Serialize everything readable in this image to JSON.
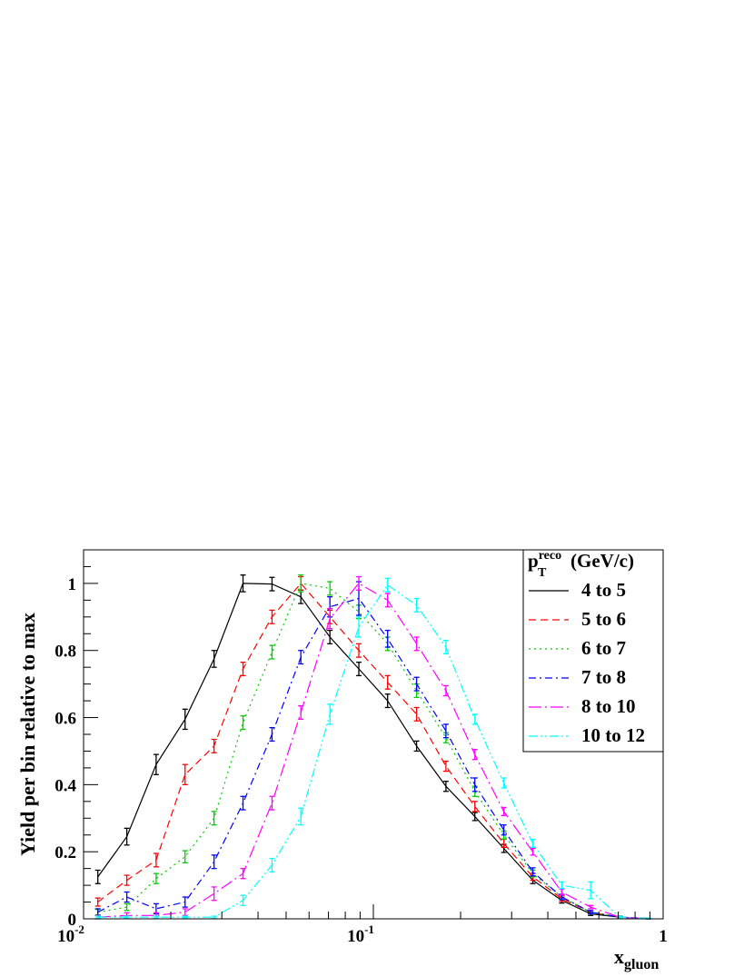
{
  "chart_data": {
    "type": "line",
    "title": "",
    "xlabel": "x",
    "xlabel_sub": "gluon",
    "ylabel": "Yield per bin relative to max",
    "xscale": "log",
    "xlim": [
      0.01,
      1
    ],
    "ylim": [
      0,
      1.1
    ],
    "grid": false,
    "legend": {
      "placement": "top-right",
      "title_main": "p",
      "title_sup": "reco",
      "title_sub": "T",
      "title_unit": "(GeV/c)"
    },
    "x_ticks": [
      {
        "value": 0.01,
        "base": "10",
        "exp": "-2"
      },
      {
        "value": 0.1,
        "base": "10",
        "exp": "-1"
      },
      {
        "value": 1,
        "base": "1",
        "exp": ""
      }
    ],
    "y_ticks": [
      {
        "value": 0,
        "label": "0"
      },
      {
        "value": 0.2,
        "label": "0.2"
      },
      {
        "value": 0.4,
        "label": "0.4"
      },
      {
        "value": 0.6,
        "label": "0.6"
      },
      {
        "value": 0.8,
        "label": "0.8"
      },
      {
        "value": 1,
        "label": "1"
      }
    ],
    "x": [
      0.0112,
      0.0141,
      0.0178,
      0.0224,
      0.0282,
      0.0355,
      0.0447,
      0.0562,
      0.0708,
      0.0891,
      0.112,
      0.141,
      0.178,
      0.224,
      0.282,
      0.355,
      0.447,
      0.562,
      0.708,
      0.891
    ],
    "series": [
      {
        "name": "4 to 5",
        "color": "#000000",
        "dash": "",
        "values": [
          0.125,
          0.245,
          0.46,
          0.595,
          0.775,
          1.0,
          0.998,
          0.96,
          0.84,
          0.745,
          0.65,
          0.515,
          0.395,
          0.305,
          0.21,
          0.115,
          0.055,
          0.015,
          0.005,
          0.001
        ],
        "errors": [
          0.02,
          0.025,
          0.03,
          0.03,
          0.025,
          0.025,
          0.02,
          0.02,
          0.02,
          0.02,
          0.02,
          0.015,
          0.015,
          0.012,
          0.012,
          0.01,
          0.008,
          0.005,
          0.003,
          0.001
        ]
      },
      {
        "name": "5 to 6",
        "color": "#ff0000",
        "dash": "8,5",
        "values": [
          0.05,
          0.115,
          0.175,
          0.43,
          0.515,
          0.745,
          0.9,
          1.0,
          0.9,
          0.8,
          0.705,
          0.61,
          0.455,
          0.335,
          0.225,
          0.125,
          0.06,
          0.02,
          0.005,
          0.001
        ],
        "errors": [
          0.012,
          0.015,
          0.02,
          0.03,
          0.02,
          0.02,
          0.02,
          0.02,
          0.02,
          0.02,
          0.02,
          0.02,
          0.015,
          0.015,
          0.012,
          0.01,
          0.008,
          0.005,
          0.003,
          0.001
        ]
      },
      {
        "name": "6 to 7",
        "color": "#00cc00",
        "dash": "2,4",
        "values": [
          0.02,
          0.035,
          0.12,
          0.185,
          0.3,
          0.585,
          0.795,
          1.0,
          0.985,
          0.915,
          0.82,
          0.68,
          0.54,
          0.38,
          0.25,
          0.135,
          0.065,
          0.02,
          0.005,
          0.001
        ],
        "errors": [
          0.008,
          0.01,
          0.015,
          0.018,
          0.02,
          0.02,
          0.02,
          0.025,
          0.02,
          0.02,
          0.02,
          0.02,
          0.015,
          0.015,
          0.012,
          0.01,
          0.008,
          0.005,
          0.003,
          0.001
        ]
      },
      {
        "name": "7 to 8",
        "color": "#0000ff",
        "dash": "8,4,2,4",
        "values": [
          0.02,
          0.065,
          0.03,
          0.05,
          0.17,
          0.345,
          0.55,
          0.78,
          0.93,
          0.955,
          0.835,
          0.7,
          0.56,
          0.4,
          0.265,
          0.14,
          0.065,
          0.02,
          0.005,
          0.001
        ],
        "errors": [
          0.01,
          0.015,
          0.015,
          0.015,
          0.02,
          0.02,
          0.02,
          0.02,
          0.03,
          0.05,
          0.025,
          0.02,
          0.02,
          0.02,
          0.015,
          0.012,
          0.008,
          0.005,
          0.003,
          0.001
        ]
      },
      {
        "name": "8 to 10",
        "color": "#ff00ff",
        "dash": "14,4,2,4",
        "values": [
          0.005,
          0.01,
          0.01,
          0.02,
          0.075,
          0.135,
          0.345,
          0.615,
          0.895,
          1.0,
          0.95,
          0.82,
          0.68,
          0.49,
          0.32,
          0.2,
          0.08,
          0.035,
          0.005,
          0.001
        ],
        "errors": [
          0.005,
          0.008,
          0.008,
          0.01,
          0.02,
          0.015,
          0.02,
          0.02,
          0.03,
          0.02,
          0.02,
          0.02,
          0.015,
          0.015,
          0.012,
          0.01,
          0.008,
          0.005,
          0.003,
          0.001
        ]
      },
      {
        "name": "10 to 12",
        "color": "#00ffff",
        "dash": "10,3,2,3,2,3",
        "values": [
          0.005,
          0.005,
          0.005,
          0.005,
          0.005,
          0.055,
          0.16,
          0.305,
          0.61,
          0.87,
          0.995,
          0.935,
          0.81,
          0.595,
          0.405,
          0.225,
          0.1,
          0.085,
          0.005,
          0.001
        ],
        "errors": [
          0.003,
          0.003,
          0.003,
          0.003,
          0.003,
          0.015,
          0.02,
          0.025,
          0.03,
          0.03,
          0.02,
          0.02,
          0.02,
          0.015,
          0.015,
          0.012,
          0.01,
          0.025,
          0.003,
          0.001
        ]
      }
    ]
  }
}
